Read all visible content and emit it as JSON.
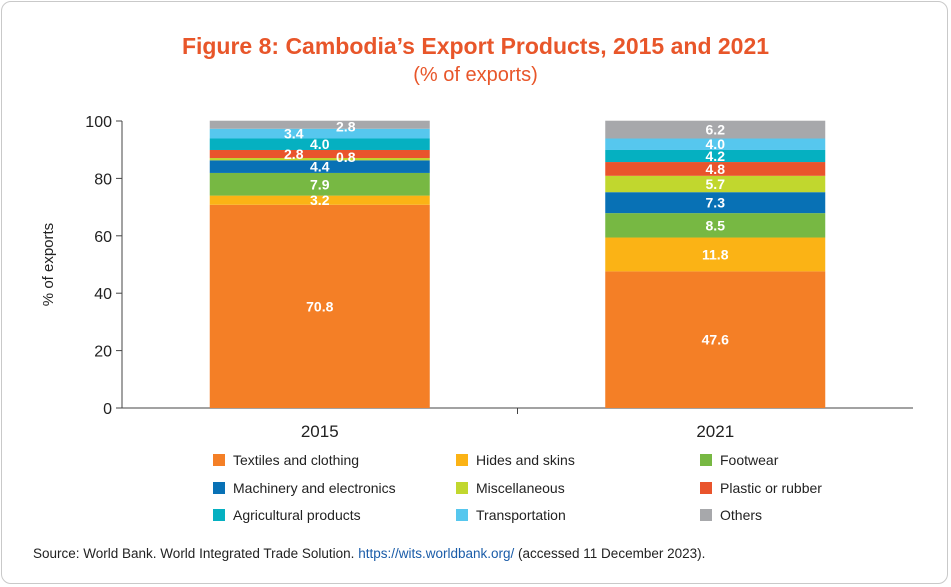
{
  "chart_data": {
    "type": "bar",
    "stacked": true,
    "title": "Figure 8: Cambodia’s Export Products, 2015 and 2021",
    "subtitle": "(% of exports)",
    "xlabel": "",
    "ylabel": "% of exports",
    "ylim": [
      0,
      100
    ],
    "yticks": [
      0,
      20,
      40,
      60,
      80,
      100
    ],
    "categories": [
      "2015",
      "2021"
    ],
    "series": [
      {
        "name": "Textiles and clothing",
        "color": "#f47f26",
        "values": [
          70.8,
          47.6
        ]
      },
      {
        "name": "Hides and skins",
        "color": "#fbb315",
        "values": [
          3.2,
          11.8
        ]
      },
      {
        "name": "Footwear",
        "color": "#77b843",
        "values": [
          7.9,
          8.5
        ]
      },
      {
        "name": "Machinery and electronics",
        "color": "#0871b5",
        "values": [
          4.4,
          7.3
        ]
      },
      {
        "name": "Miscellaneous",
        "color": "#c1d72e",
        "values": [
          0.8,
          5.7
        ]
      },
      {
        "name": "Plastic or rubber",
        "color": "#e9542c",
        "values": [
          2.8,
          4.8
        ]
      },
      {
        "name": "Agricultural products",
        "color": "#05b0c1",
        "values": [
          4.0,
          4.2
        ]
      },
      {
        "name": "Transportation",
        "color": "#56c7ee",
        "values": [
          3.4,
          4.0
        ]
      },
      {
        "name": "Others",
        "color": "#a7a8ab",
        "values": [
          2.8,
          6.2
        ]
      }
    ]
  },
  "source": {
    "prefix": "Source: World Bank. World Integrated Trade Solution. ",
    "link": "https://wits.worldbank.org/",
    "suffix": " (accessed 11 December 2023)."
  }
}
